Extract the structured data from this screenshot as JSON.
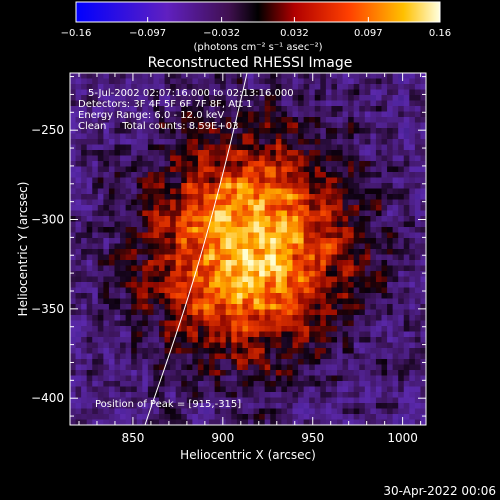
{
  "colorbar": {
    "ticks": [
      "-0.16",
      "-0.097",
      "-0.032",
      "0.032",
      "0.097",
      "0.16"
    ],
    "units": "(photons cm⁻² s⁻¹ asec⁻²)",
    "range": [
      -0.16,
      0.16
    ]
  },
  "chart_data": {
    "type": "heatmap",
    "title": "Reconstructed RHESSI Image",
    "xlabel": "Heliocentric X (arcsec)",
    "ylabel": "Heliocentric Y (arcsec)",
    "xlim": [
      815,
      1013
    ],
    "ylim": [
      -415,
      -218
    ],
    "x_ticks": [
      850,
      900,
      950,
      1000
    ],
    "y_ticks": [
      -400,
      -350,
      -300,
      -250
    ],
    "colormap": "RHESSI thermal (blue-purple-black-red-orange-yellow-white)",
    "peak": [
      915,
      -315
    ],
    "annotations": [
      "5-Jul-2002 02:07:16.000 to 02:13:16.000",
      "Detectors: 3F 4F 5F 6F 7F 8F, Att 1",
      "Energy Range: 6.0 - 12.0 keV",
      "Clean     Total counts: 8.59E+03",
      "Position of Peak = [915,-315]"
    ],
    "grid": false
  },
  "footer": {
    "timestamp": "30-Apr-2022 00:06"
  },
  "colors": {
    "background": "#000000",
    "foreground": "#ffffff"
  }
}
